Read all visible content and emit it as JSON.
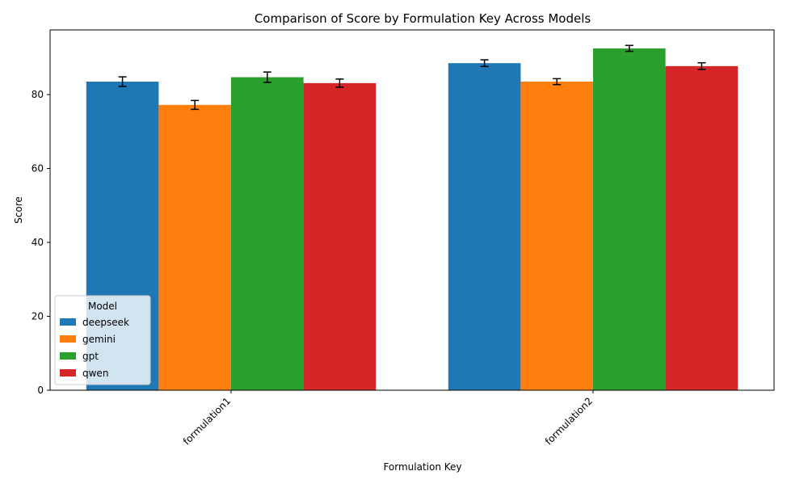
{
  "chart_data": {
    "type": "bar",
    "title": "Comparison of Score by Formulation Key Across Models",
    "xlabel": "Formulation Key",
    "ylabel": "Score",
    "categories": [
      "formulation1",
      "formulation2"
    ],
    "ylim": [
      0,
      97.5
    ],
    "yticks": [
      0,
      20,
      40,
      60,
      80
    ],
    "grid": false,
    "legend": {
      "title": "Model",
      "placement": "lower-left"
    },
    "series": [
      {
        "name": "deepseek",
        "color": "#1f77b4",
        "values": [
          83.5,
          88.5
        ],
        "errors": [
          1.3,
          0.9
        ]
      },
      {
        "name": "gemini",
        "color": "#ff7f0e",
        "values": [
          77.2,
          83.5
        ],
        "errors": [
          1.2,
          0.8
        ]
      },
      {
        "name": "gpt",
        "color": "#2ca02c",
        "values": [
          84.7,
          92.5
        ],
        "errors": [
          1.4,
          0.8
        ]
      },
      {
        "name": "qwen",
        "color": "#d62728",
        "values": [
          83.1,
          87.7
        ],
        "errors": [
          1.1,
          0.9
        ]
      }
    ]
  }
}
